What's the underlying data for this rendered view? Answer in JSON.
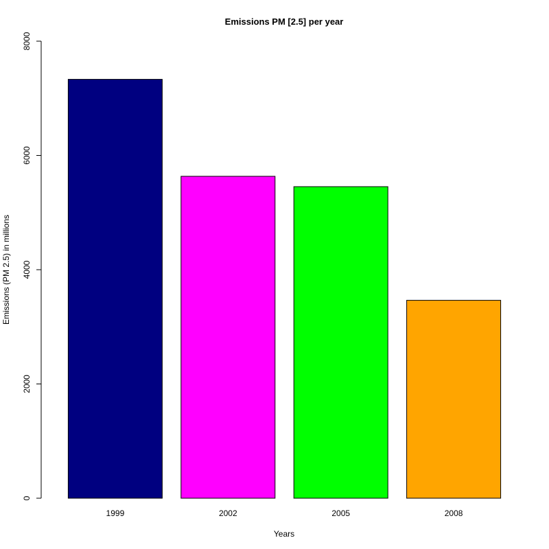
{
  "chart_data": {
    "type": "bar",
    "title": "Emissions PM [2.5] per year",
    "xlabel": "Years",
    "ylabel": "Emissions (PM 2.5) in millions",
    "categories": [
      "1999",
      "2002",
      "2005",
      "2008"
    ],
    "values": [
      7332,
      5635,
      5454,
      3464
    ],
    "colors": [
      "#000080",
      "#ff00ff",
      "#00ff00",
      "#ffa500"
    ],
    "ylim": [
      0,
      8000
    ],
    "yticks": [
      0,
      2000,
      4000,
      6000,
      8000
    ],
    "grid": false,
    "legend": "none"
  }
}
